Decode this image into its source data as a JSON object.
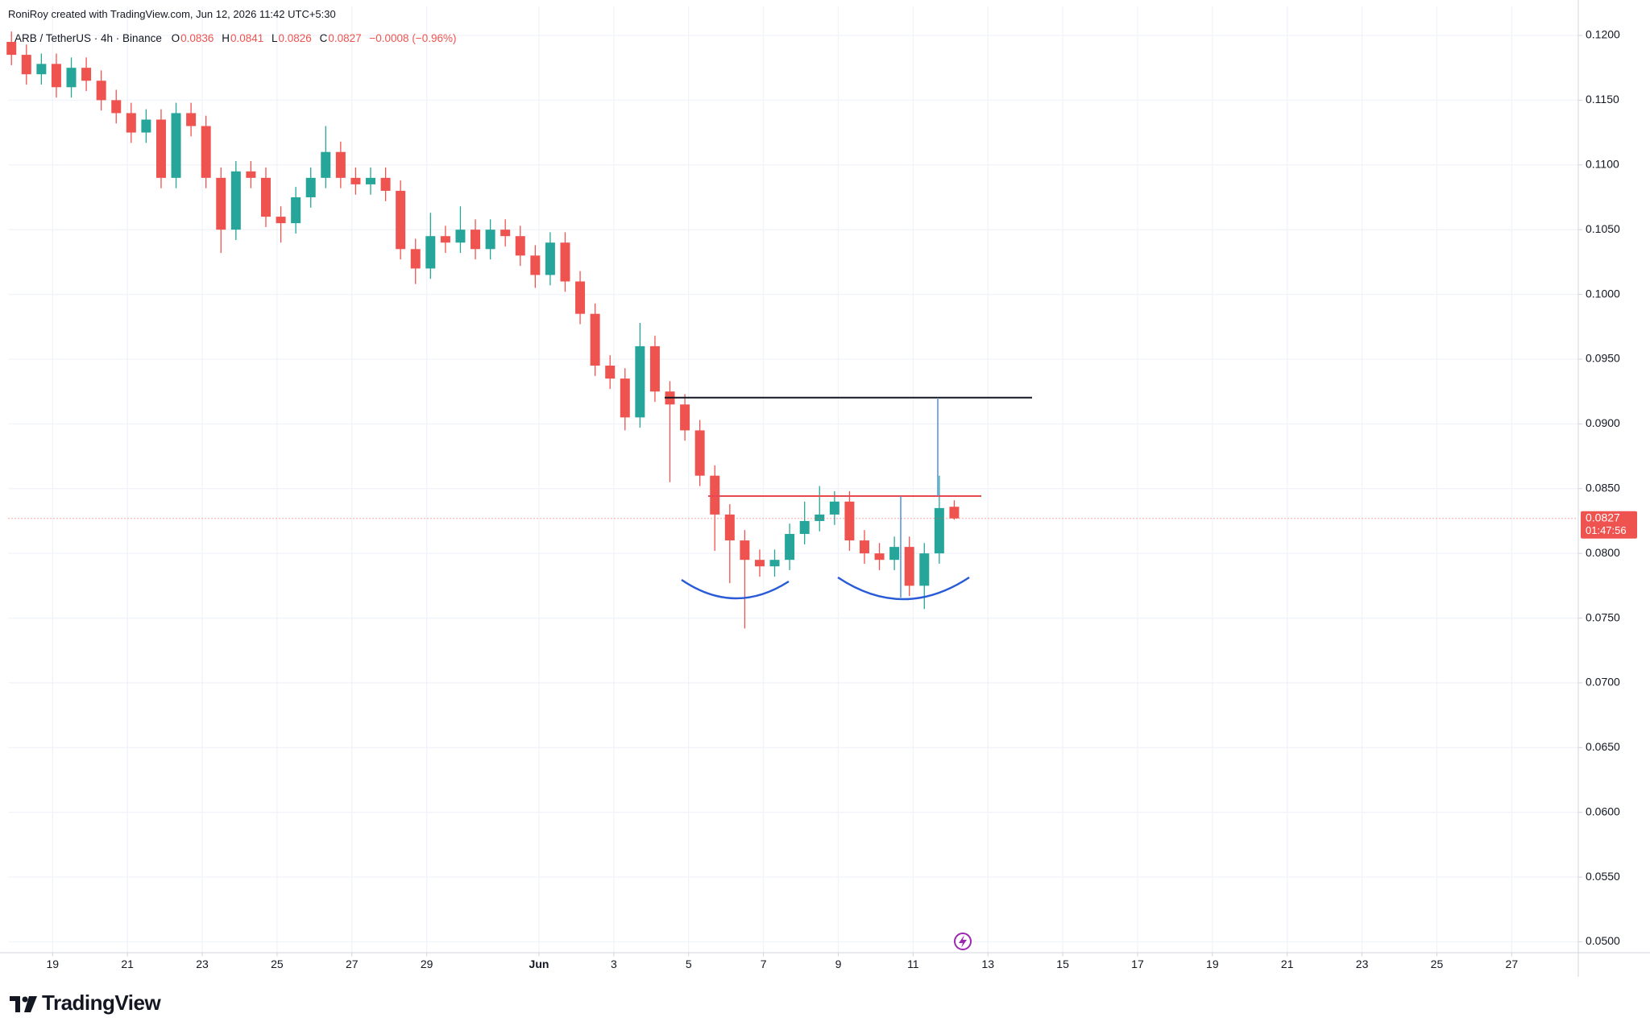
{
  "header": {
    "credit": "RoniRoy created with TradingView.com, Jun 12, 2026 11:42 UTC+5:30",
    "logo": "TradingView"
  },
  "chart_data": {
    "type": "candlestick",
    "symbol": "ARB / TetherUS · 4h · Binance",
    "ohlc_labels": [
      "O",
      "H",
      "L",
      "C"
    ],
    "change_label": "−0.0008 (−0.96%)",
    "countdown": "01:47:56",
    "up_color": "#26a69a",
    "down_color": "#ef5350",
    "grid": true,
    "x": [
      -1.1,
      -0.7,
      -0.3,
      0.1,
      0.5,
      0.9,
      1.3,
      1.7,
      2.1,
      2.5,
      2.9,
      3.3,
      3.7,
      4.1,
      4.5,
      4.9,
      5.3,
      5.7,
      6.1,
      6.5,
      6.9,
      7.3,
      7.7,
      8.1,
      8.5,
      8.9,
      9.3,
      9.7,
      10.1,
      10.5,
      10.9,
      11.3,
      11.7,
      12.1,
      12.5,
      12.9,
      13.3,
      13.7,
      14.1,
      14.5,
      14.9,
      15.3,
      15.7,
      16.1,
      16.5,
      16.9,
      17.3,
      17.7,
      18.1,
      18.5,
      18.9,
      19.3,
      19.7,
      20.1,
      20.5,
      20.9,
      21.3,
      21.7,
      22.1,
      22.5,
      22.9,
      23.3,
      23.7,
      24.1
    ],
    "open": [
      0.1195,
      0.1185,
      0.117,
      0.1178,
      0.116,
      0.1175,
      0.1165,
      0.115,
      0.114,
      0.1125,
      0.1135,
      0.109,
      0.114,
      0.113,
      0.109,
      0.105,
      0.1095,
      0.109,
      0.106,
      0.1055,
      0.1075,
      0.109,
      0.111,
      0.109,
      0.1085,
      0.109,
      0.108,
      0.1035,
      0.102,
      0.1045,
      0.104,
      0.105,
      0.1035,
      0.105,
      0.1045,
      0.103,
      0.1015,
      0.104,
      0.101,
      0.0985,
      0.0945,
      0.0935,
      0.0905,
      0.096,
      0.0925,
      0.0915,
      0.0895,
      0.086,
      0.083,
      0.081,
      0.0795,
      0.079,
      0.0795,
      0.0815,
      0.0825,
      0.083,
      0.084,
      0.081,
      0.08,
      0.0795,
      0.0805,
      0.0775,
      0.08,
      0.0836
    ],
    "high": [
      0.1203,
      0.1193,
      0.1186,
      0.1186,
      0.1183,
      0.1183,
      0.1173,
      0.1158,
      0.1148,
      0.1143,
      0.1143,
      0.1148,
      0.1148,
      0.1138,
      0.1098,
      0.1103,
      0.1103,
      0.1098,
      0.1068,
      0.1083,
      0.1098,
      0.113,
      0.1118,
      0.1098,
      0.1098,
      0.1098,
      0.1088,
      0.1043,
      0.1063,
      0.1053,
      0.1068,
      0.1058,
      0.1058,
      0.1058,
      0.1053,
      0.1038,
      0.1048,
      0.1048,
      0.1018,
      0.0993,
      0.0953,
      0.0943,
      0.0978,
      0.0968,
      0.0933,
      0.0923,
      0.0903,
      0.0868,
      0.0838,
      0.0818,
      0.0803,
      0.0803,
      0.0823,
      0.084,
      0.0852,
      0.0848,
      0.0848,
      0.0818,
      0.0808,
      0.0813,
      0.0813,
      0.0808,
      0.086,
      0.0841
    ],
    "low": [
      0.1177,
      0.1162,
      0.1162,
      0.1152,
      0.1152,
      0.1157,
      0.1142,
      0.1132,
      0.1117,
      0.1117,
      0.1082,
      0.1082,
      0.1122,
      0.1082,
      0.1032,
      0.1042,
      0.1082,
      0.1052,
      0.104,
      0.1047,
      0.1067,
      0.1082,
      0.1082,
      0.1077,
      0.1077,
      0.1072,
      0.1027,
      0.1008,
      0.1012,
      0.1032,
      0.1032,
      0.1027,
      0.1027,
      0.1037,
      0.1022,
      0.1005,
      0.1007,
      0.1002,
      0.0977,
      0.0937,
      0.0927,
      0.0895,
      0.0897,
      0.0917,
      0.0855,
      0.0887,
      0.0852,
      0.0802,
      0.0777,
      0.0742,
      0.0782,
      0.0782,
      0.0787,
      0.0807,
      0.0817,
      0.0822,
      0.0802,
      0.0792,
      0.0787,
      0.0787,
      0.0767,
      0.0757,
      0.0792,
      0.0826
    ],
    "close": [
      0.1185,
      0.117,
      0.1178,
      0.116,
      0.1175,
      0.1165,
      0.115,
      0.114,
      0.1125,
      0.1135,
      0.109,
      0.114,
      0.113,
      0.109,
      0.105,
      0.1095,
      0.109,
      0.106,
      0.1055,
      0.1075,
      0.109,
      0.111,
      0.109,
      0.1085,
      0.109,
      0.108,
      0.1035,
      0.102,
      0.1045,
      0.104,
      0.105,
      0.1035,
      0.105,
      0.1045,
      0.103,
      0.1015,
      0.104,
      0.101,
      0.0985,
      0.0945,
      0.0935,
      0.0905,
      0.096,
      0.0925,
      0.0915,
      0.0895,
      0.086,
      0.083,
      0.081,
      0.0795,
      0.079,
      0.0795,
      0.0815,
      0.0825,
      0.083,
      0.084,
      0.081,
      0.08,
      0.0795,
      0.0805,
      0.0775,
      0.08,
      0.0835,
      0.0827
    ],
    "xlim": [
      -1.18,
      40.78
    ],
    "xticks": [
      {
        "value": 0,
        "label": "19"
      },
      {
        "value": 2,
        "label": "21"
      },
      {
        "value": 4,
        "label": "23"
      },
      {
        "value": 6,
        "label": "25"
      },
      {
        "value": 8,
        "label": "27"
      },
      {
        "value": 10,
        "label": "29"
      },
      {
        "value": 13,
        "label": "Jun"
      },
      {
        "value": 15,
        "label": "3"
      },
      {
        "value": 17,
        "label": "5"
      },
      {
        "value": 19,
        "label": "7"
      },
      {
        "value": 21,
        "label": "9"
      },
      {
        "value": 23,
        "label": "11"
      },
      {
        "value": 25,
        "label": "13"
      },
      {
        "value": 27,
        "label": "15"
      },
      {
        "value": 29,
        "label": "17"
      },
      {
        "value": 31,
        "label": "19"
      },
      {
        "value": 33,
        "label": "21"
      },
      {
        "value": 35,
        "label": "23"
      },
      {
        "value": 37,
        "label": "25"
      },
      {
        "value": 39,
        "label": "27"
      }
    ],
    "ylim": [
      0.0492,
      0.121
    ],
    "yticks": [
      {
        "value": 0.05,
        "label": "0.0500"
      },
      {
        "value": 0.055,
        "label": "0.0550"
      },
      {
        "value": 0.06,
        "label": "0.0600"
      },
      {
        "value": 0.065,
        "label": "0.0650"
      },
      {
        "value": 0.07,
        "label": "0.0700"
      },
      {
        "value": 0.075,
        "label": "0.0750"
      },
      {
        "value": 0.08,
        "label": "0.0800"
      },
      {
        "value": 0.085,
        "label": "0.0850"
      },
      {
        "value": 0.09,
        "label": "0.0900"
      },
      {
        "value": 0.095,
        "label": "0.0950"
      },
      {
        "value": 0.1,
        "label": "0.1000"
      },
      {
        "value": 0.105,
        "label": "0.1050"
      },
      {
        "value": 0.11,
        "label": "0.1100"
      },
      {
        "value": 0.115,
        "label": "0.1150"
      },
      {
        "value": 0.12,
        "label": "0.1200"
      }
    ]
  }
}
